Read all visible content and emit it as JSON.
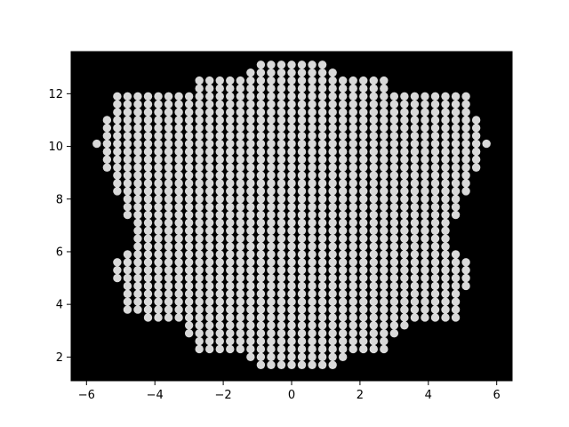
{
  "chart_data": {
    "type": "scatter",
    "title": "",
    "xlabel": "",
    "ylabel": "",
    "xlim": [
      -6.45,
      6.45
    ],
    "ylim": [
      1.1,
      13.6
    ],
    "grid": false,
    "legend": "none",
    "background_color": "#000000",
    "marker": "circle",
    "point_color": "#ffffff",
    "x_ticks": [
      -6,
      -4,
      -2,
      0,
      2,
      4,
      6
    ],
    "x_tick_labels": [
      "−6",
      "−4",
      "−2",
      "0",
      "2",
      "4",
      "6"
    ],
    "y_ticks": [
      2,
      4,
      6,
      8,
      10,
      12
    ],
    "y_tick_labels": [
      "2",
      "4",
      "6",
      "8",
      "10",
      "12"
    ],
    "grid_spacing": 0.3,
    "lattice_x_range": [
      -5.7,
      5.7
    ],
    "lattice_y_range": [
      1.7,
      13.1
    ],
    "x_extent_by_row": [
      {
        "y": 1.7,
        "x_min": -0.9,
        "x_max": 1.2
      },
      {
        "y": 2.0,
        "x_min": -1.2,
        "x_max": 1.5
      },
      {
        "y": 2.3,
        "x_min": -2.7,
        "x_max": 2.7
      },
      {
        "y": 2.6,
        "x_min": -2.7,
        "x_max": 2.7
      },
      {
        "y": 2.9,
        "x_min": -3.0,
        "x_max": 3.0
      },
      {
        "y": 3.2,
        "x_min": -3.0,
        "x_max": 3.3
      },
      {
        "y": 3.5,
        "x_min": -4.2,
        "x_max": 4.8
      },
      {
        "y": 3.8,
        "x_min": -4.8,
        "x_max": 4.8
      },
      {
        "y": 4.1,
        "x_min": -4.8,
        "x_max": 4.8
      },
      {
        "y": 4.4,
        "x_min": -4.8,
        "x_max": 4.8
      },
      {
        "y": 4.7,
        "x_min": -4.8,
        "x_max": 5.1
      },
      {
        "y": 5.0,
        "x_min": -5.1,
        "x_max": 5.1
      },
      {
        "y": 5.3,
        "x_min": -5.1,
        "x_max": 5.1
      },
      {
        "y": 5.6,
        "x_min": -5.1,
        "x_max": 5.1
      },
      {
        "y": 5.9,
        "x_min": -4.8,
        "x_max": 4.8
      },
      {
        "y": 6.2,
        "x_min": -4.5,
        "x_max": 4.5
      },
      {
        "y": 6.5,
        "x_min": -4.5,
        "x_max": 4.5
      },
      {
        "y": 6.8,
        "x_min": -4.5,
        "x_max": 4.5
      },
      {
        "y": 7.1,
        "x_min": -4.5,
        "x_max": 4.5
      },
      {
        "y": 7.4,
        "x_min": -4.8,
        "x_max": 4.8
      },
      {
        "y": 7.7,
        "x_min": -4.8,
        "x_max": 4.8
      },
      {
        "y": 8.0,
        "x_min": -4.8,
        "x_max": 4.8
      },
      {
        "y": 8.3,
        "x_min": -5.1,
        "x_max": 5.1
      },
      {
        "y": 8.6,
        "x_min": -5.1,
        "x_max": 5.1
      },
      {
        "y": 8.9,
        "x_min": -5.1,
        "x_max": 5.1
      },
      {
        "y": 9.2,
        "x_min": -5.4,
        "x_max": 5.4
      },
      {
        "y": 9.5,
        "x_min": -5.4,
        "x_max": 5.4
      },
      {
        "y": 9.8,
        "x_min": -5.4,
        "x_max": 5.4
      },
      {
        "y": 10.1,
        "x_min": -5.7,
        "x_max": 5.7
      },
      {
        "y": 10.4,
        "x_min": -5.4,
        "x_max": 5.4
      },
      {
        "y": 10.7,
        "x_min": -5.4,
        "x_max": 5.4
      },
      {
        "y": 11.0,
        "x_min": -5.4,
        "x_max": 5.4
      },
      {
        "y": 11.3,
        "x_min": -5.1,
        "x_max": 5.1
      },
      {
        "y": 11.6,
        "x_min": -5.1,
        "x_max": 5.1
      },
      {
        "y": 11.9,
        "x_min": -5.1,
        "x_max": 5.1
      },
      {
        "y": 12.2,
        "x_min": -2.7,
        "x_max": 2.7
      },
      {
        "y": 12.5,
        "x_min": -2.7,
        "x_max": 2.7
      },
      {
        "y": 12.8,
        "x_min": -1.2,
        "x_max": 1.2
      },
      {
        "y": 13.1,
        "x_min": -0.9,
        "x_max": 0.9
      }
    ]
  }
}
